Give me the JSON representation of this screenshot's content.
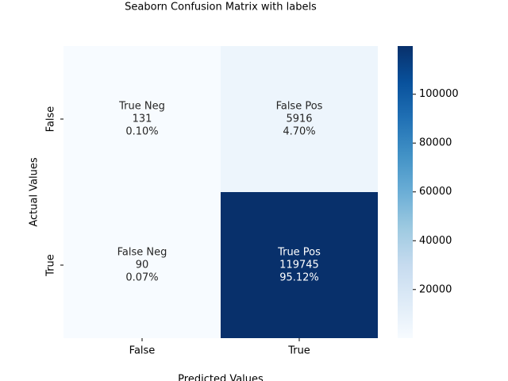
{
  "chart_data": {
    "type": "heatmap",
    "title": "Seaborn Confusion Matrix with labels",
    "x_label": "Predicted Values",
    "y_label": "Actual Values",
    "x_categories": [
      "False",
      "True"
    ],
    "y_categories": [
      "False",
      "True"
    ],
    "values": [
      [
        131,
        5916
      ],
      [
        90,
        119745
      ]
    ],
    "cell_names": [
      [
        "True Neg",
        "False Pos"
      ],
      [
        "False Neg",
        "True Pos"
      ]
    ],
    "percent_labels": [
      [
        "0.10%",
        "4.70%"
      ],
      [
        "0.07%",
        "95.12%"
      ]
    ],
    "colorbar_lim": [
      90,
      119745
    ],
    "colorbar_ticks": [
      20000,
      40000,
      60000,
      80000,
      100000
    ],
    "cmap": [
      "#f7fbff",
      "#deebf7",
      "#c6dbef",
      "#9ecae1",
      "#6baed6",
      "#4292c6",
      "#2171b5",
      "#08519c",
      "#08306b"
    ]
  }
}
